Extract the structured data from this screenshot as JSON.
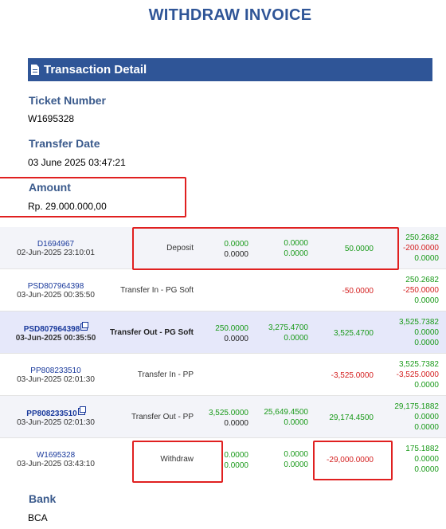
{
  "title": "WITHDRAW INVOICE",
  "section": {
    "title": "Transaction Detail",
    "icon": "document-icon"
  },
  "ticket": {
    "label": "Ticket Number",
    "value": "W1695328"
  },
  "transfer_date": {
    "label": "Transfer Date",
    "value": "03 June 2025 03:47:21"
  },
  "amount": {
    "label": "Amount",
    "value": "Rp. 29.000.000,00"
  },
  "rows": [
    {
      "id": "D1694967",
      "date": "02-Jun-2025 23:10:01",
      "desc": "Deposit",
      "c1": [
        "0.0000",
        "0.0000"
      ],
      "c2": [
        "0.0000",
        "0.0000"
      ],
      "c3": "50.0000",
      "bal": [
        "250.2682",
        "-200.0000",
        "0.0000"
      ]
    },
    {
      "id": "PSD807964398",
      "date": "03-Jun-2025 00:35:50",
      "desc": "Transfer In - PG Soft",
      "c1": [
        "",
        ""
      ],
      "c2": [
        "",
        ""
      ],
      "c3": "-50.0000",
      "bal": [
        "250.2682",
        "-250.0000",
        "0.0000"
      ]
    },
    {
      "id": "PSD807964398",
      "date": "03-Jun-2025 00:35:50",
      "desc": "Transfer Out - PG Soft",
      "c1": [
        "250.0000",
        "0.0000"
      ],
      "c2": [
        "3,275.4700",
        "0.0000"
      ],
      "c3": "3,525.4700",
      "bal": [
        "3,525.7382",
        "0.0000",
        "0.0000"
      ]
    },
    {
      "id": "PP808233510",
      "date": "03-Jun-2025 02:01:30",
      "desc": "Transfer In - PP",
      "c1": [
        "",
        ""
      ],
      "c2": [
        "",
        ""
      ],
      "c3": "-3,525.0000",
      "bal": [
        "3,525.7382",
        "-3,525.0000",
        "0.0000"
      ]
    },
    {
      "id": "PP808233510",
      "date": "03-Jun-2025 02:01:30",
      "desc": "Transfer Out - PP",
      "c1": [
        "3,525.0000",
        "0.0000"
      ],
      "c2": [
        "25,649.4500",
        "0.0000"
      ],
      "c3": "29,174.4500",
      "bal": [
        "29,175.1882",
        "0.0000",
        "0.0000"
      ]
    },
    {
      "id": "W1695328",
      "date": "03-Jun-2025 03:43:10",
      "desc": "Withdraw",
      "c1": [
        "0.0000",
        "0.0000"
      ],
      "c2": [
        "0.0000",
        "0.0000"
      ],
      "c3": "-29,000.0000",
      "bal": [
        "175.1882",
        "0.0000",
        "0.0000"
      ]
    }
  ],
  "bank": {
    "label": "Bank",
    "value": "BCA"
  },
  "colors": {
    "accent": "#2f5597",
    "positive": "#1a9a1a",
    "negative": "#d42020",
    "highlight": "#e02020"
  }
}
